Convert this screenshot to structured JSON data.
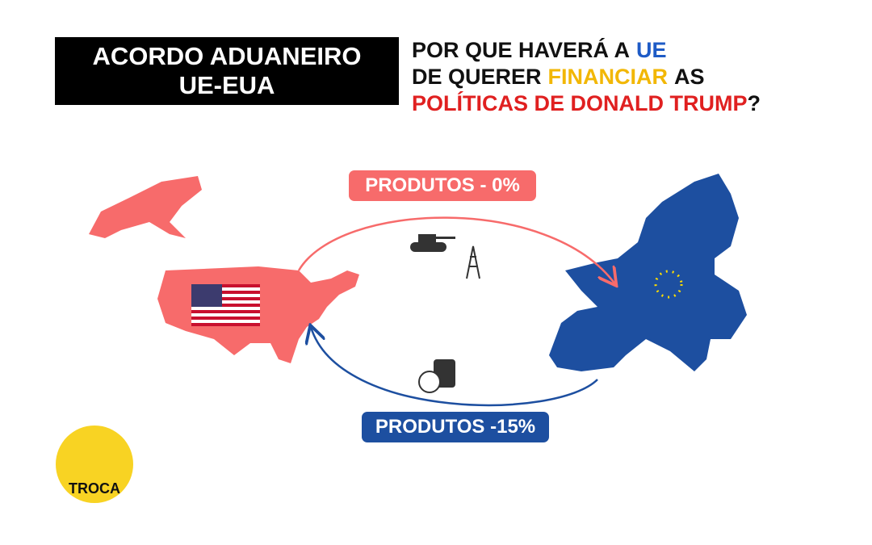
{
  "header": {
    "title": [
      "ACORDO ADUANEIRO",
      "UE-EUA"
    ],
    "question": [
      [
        "POR QUE HAVERÁ A",
        "UE"
      ],
      [
        "DE QUERER",
        "FINANCIAR",
        "AS"
      ],
      [
        "POLÍTICAS DE DONALD TRUMP",
        "?"
      ]
    ]
  },
  "flows": {
    "to_eu": "PRODUTOS - 0%",
    "to_us": "PRODUTOS -15%"
  },
  "logo": "TROCA"
}
